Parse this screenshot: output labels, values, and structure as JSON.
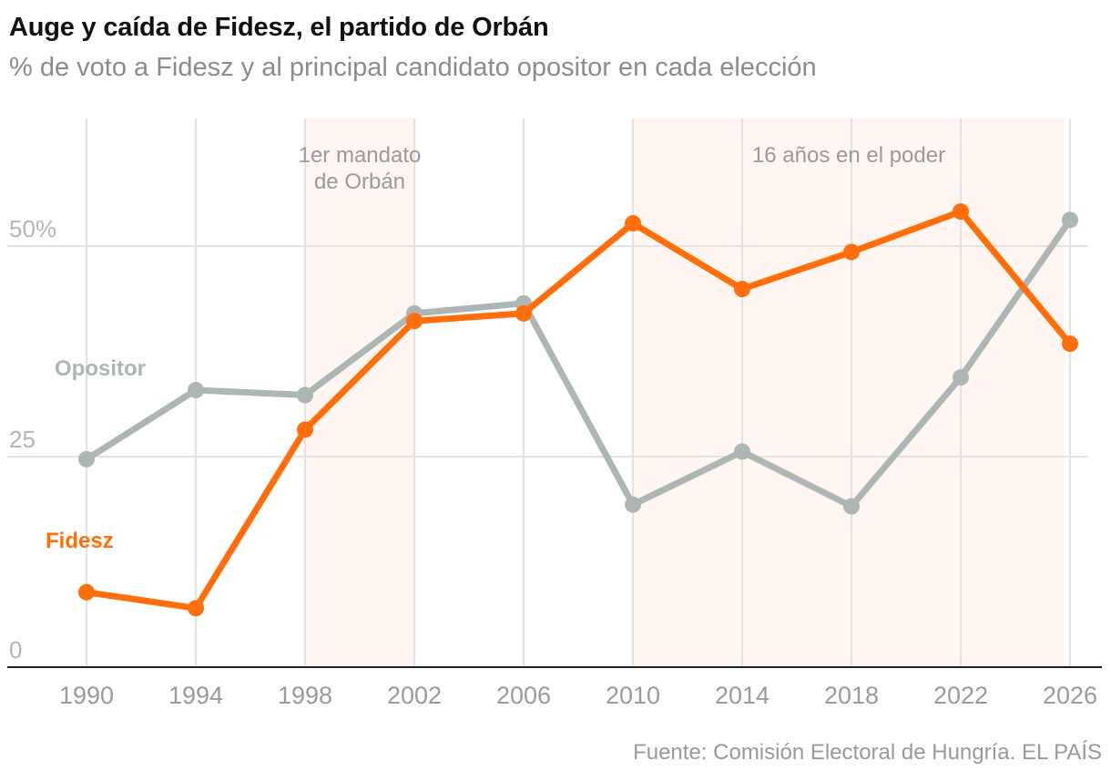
{
  "title": "Auge y caída de Fidesz, el partido de Orbán",
  "subtitle": "% de voto a Fidesz y al principal candidato opositor en cada elección",
  "source": "Fuente: Comisión Electoral de Hungría. EL PAÍS",
  "chart_data": {
    "type": "line",
    "x": [
      1990,
      1994,
      1998,
      2002,
      2006,
      2010,
      2014,
      2018,
      2022,
      2026
    ],
    "x_tick_labels": [
      "1990",
      "1994",
      "1998",
      "2002",
      "2006",
      "2010",
      "2014",
      "2018",
      "2022",
      "2026"
    ],
    "y_ticks": [
      0,
      25,
      50
    ],
    "y_tick_labels": [
      "0",
      "25",
      "50%"
    ],
    "ylim": [
      0,
      65
    ],
    "grid": true,
    "series": [
      {
        "name": "Opositor",
        "color": "#adb5b5",
        "values": [
          24.7,
          32.9,
          32.3,
          42.0,
          43.2,
          19.3,
          25.6,
          19.1,
          34.4,
          53.1
        ]
      },
      {
        "name": "Fidesz",
        "color": "#ff6e0a",
        "values": [
          8.9,
          7.0,
          28.2,
          41.1,
          42.0,
          52.7,
          44.9,
          49.3,
          54.1,
          38.4
        ]
      }
    ],
    "periods": [
      {
        "label_lines": [
          "1er mandato",
          "de Orbán"
        ],
        "start": 1998,
        "end": 2002
      },
      {
        "label_lines": [
          "16 años en el poder"
        ],
        "start": 2010,
        "end": 2025.8
      }
    ],
    "colors": {
      "period_fill": "#fff6f1",
      "grid": "#e3e3e3",
      "axis": "#222222"
    }
  }
}
